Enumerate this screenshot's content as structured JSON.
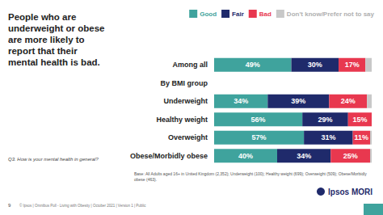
{
  "chart_data": {
    "type": "bar",
    "orientation": "horizontal",
    "stacked": true,
    "title": "People who are underweight or obese are more likely to report that their mental health is bad.",
    "categories": [
      "Among all",
      "By BMI group",
      "Underweight",
      "Healthy weight",
      "Overweight",
      "Obese/Morbidly obese"
    ],
    "series": [
      {
        "name": "Good",
        "color": "#3fa39d",
        "data_labels": true,
        "values": [
          49,
          null,
          34,
          56,
          57,
          40
        ],
        "value_labels": [
          "49%",
          null,
          "34%",
          "56%",
          "57%",
          "40%"
        ]
      },
      {
        "name": "Fair",
        "color": "#1f2a6b",
        "data_labels": true,
        "values": [
          30,
          null,
          39,
          29,
          31,
          34
        ],
        "value_labels": [
          "30%",
          null,
          "39%",
          "29%",
          "31%",
          "34%"
        ]
      },
      {
        "name": "Bad",
        "color": "#e8384f",
        "data_labels": true,
        "values": [
          17,
          null,
          24,
          15,
          11,
          25
        ],
        "value_labels": [
          "17%",
          null,
          "24%",
          "15%",
          "11%",
          "25%"
        ]
      },
      {
        "name": "Don't know/Prefer not to say",
        "color": "#c8c8c8",
        "data_labels": false,
        "values": [
          4,
          null,
          3,
          0,
          1,
          1
        ]
      }
    ],
    "xlim": [
      0,
      100
    ],
    "legend": "top-right",
    "grid": false,
    "tick_labels": "y",
    "annotations": {
      "question": "Q3. How is your mental health in general?",
      "base": "Base: All Adults aged 16+ in United Kingdom (2,352); Underweight (100); Healthy weight (699); Overweight (509); Obese/Morbidly obese (463).",
      "footer": "© Ipsos | Omnibus Poll - Living with Obesity | October 2021 | Version 1 | Public",
      "page_number": "9",
      "logo": "Ipsos MORI"
    }
  }
}
